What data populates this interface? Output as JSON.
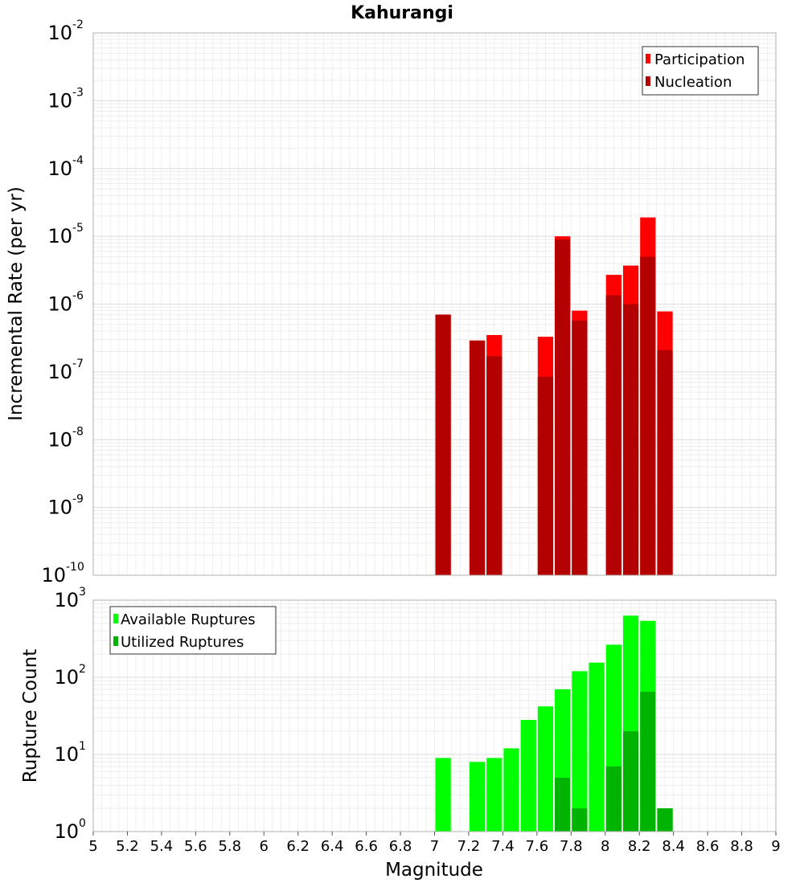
{
  "chart_data": [
    {
      "type": "bar",
      "title": "Kahurangi",
      "xlabel": "",
      "ylabel": "Incremental Rate (per yr)",
      "yscale": "log",
      "ylim": [
        1e-10,
        0.01
      ],
      "xlim": [
        5,
        9
      ],
      "y_ticks": [
        "10^-10",
        "10^-9",
        "10^-8",
        "10^-7",
        "10^-6",
        "10^-5",
        "10^-4",
        "10^-3",
        "10^-2"
      ],
      "grid": true,
      "legend_position": "top-right",
      "x": [
        7.05,
        7.25,
        7.35,
        7.65,
        7.75,
        7.85,
        8.05,
        8.15,
        8.25,
        8.35
      ],
      "series": [
        {
          "name": "Participation",
          "color": "#ff0000",
          "values": [
            7e-07,
            2.9e-07,
            3.5e-07,
            3.3e-07,
            1e-05,
            8e-07,
            2.7e-06,
            3.7e-06,
            1.9e-05,
            7.8e-07
          ]
        },
        {
          "name": "Nucleation",
          "color": "#b30000",
          "values": [
            7e-07,
            2.9e-07,
            1.7e-07,
            8.5e-08,
            9e-06,
            5.7e-07,
            1.35e-06,
            1e-06,
            5e-06,
            2.1e-07
          ]
        }
      ]
    },
    {
      "type": "bar",
      "xlabel": "Magnitude",
      "ylabel": "Rupture Count",
      "yscale": "log",
      "ylim": [
        1,
        1000
      ],
      "xlim": [
        5,
        9
      ],
      "y_ticks": [
        "10^0",
        "10^1",
        "10^2",
        "10^3"
      ],
      "x_ticks": [
        "5",
        "5.2",
        "5.4",
        "5.6",
        "5.8",
        "6",
        "6.2",
        "6.4",
        "6.6",
        "6.8",
        "7",
        "7.2",
        "7.4",
        "7.6",
        "7.8",
        "8",
        "8.2",
        "8.4",
        "8.6",
        "8.8",
        "9"
      ],
      "grid": true,
      "legend_position": "top-left",
      "x": [
        7.05,
        7.25,
        7.35,
        7.45,
        7.55,
        7.65,
        7.75,
        7.85,
        7.95,
        8.05,
        8.15,
        8.25,
        8.35
      ],
      "series": [
        {
          "name": "Available Ruptures",
          "color": "#00ff00",
          "values": [
            9,
            8,
            9,
            12,
            28,
            42,
            70,
            120,
            155,
            265,
            630,
            540,
            2
          ]
        },
        {
          "name": "Utilized Ruptures",
          "color": "#00b300",
          "values": [
            1,
            1,
            1,
            0,
            1,
            1,
            5,
            2,
            1,
            7,
            20,
            65,
            2
          ]
        }
      ]
    }
  ]
}
